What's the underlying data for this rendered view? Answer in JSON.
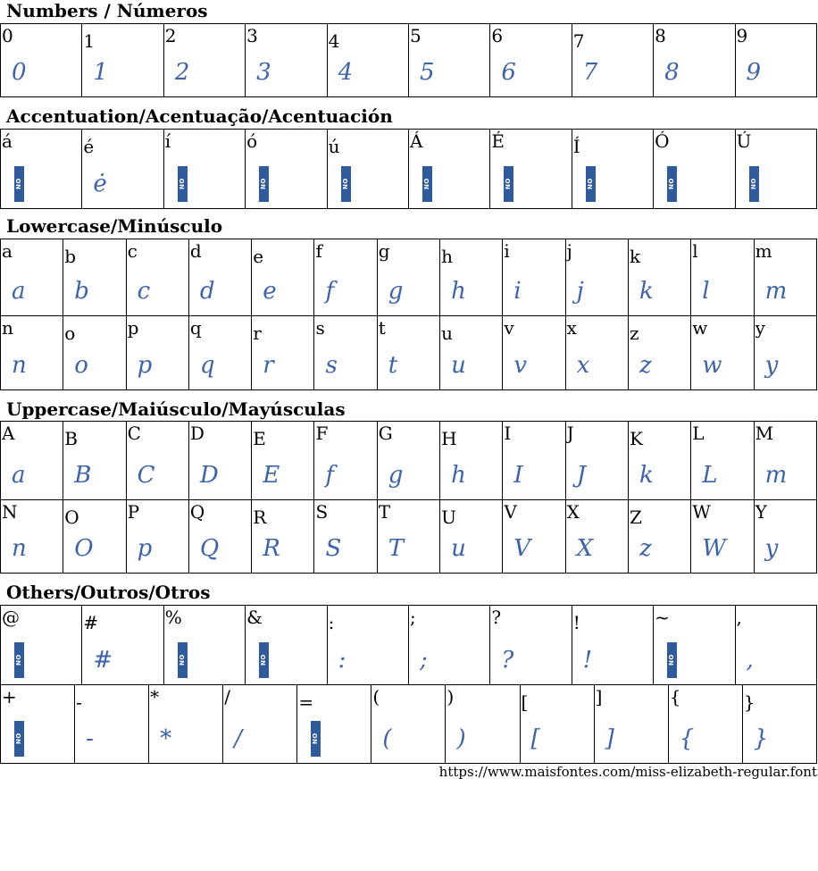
{
  "sections": [
    {
      "title": "Numbers / Números",
      "rows": [
        [
          {
            "char": "0",
            "glyph": "0"
          },
          {
            "char": "1",
            "glyph": "1"
          },
          {
            "char": "2",
            "glyph": "2"
          },
          {
            "char": "3",
            "glyph": "3"
          },
          {
            "char": "4",
            "glyph": "4"
          },
          {
            "char": "5",
            "glyph": "5"
          },
          {
            "char": "6",
            "glyph": "6"
          },
          {
            "char": "7",
            "glyph": "7"
          },
          {
            "char": "8",
            "glyph": "8"
          },
          {
            "char": "9",
            "glyph": "9"
          }
        ]
      ]
    },
    {
      "title": "Accentuation/Acentuação/Acentuación",
      "rows": [
        [
          {
            "char": "á",
            "glyph": null
          },
          {
            "char": "é",
            "glyph": "ė"
          },
          {
            "char": "í",
            "glyph": null
          },
          {
            "char": "ó",
            "glyph": null
          },
          {
            "char": "ú",
            "glyph": null
          },
          {
            "char": "Á",
            "glyph": null
          },
          {
            "char": "É",
            "glyph": null
          },
          {
            "char": "Í",
            "glyph": null
          },
          {
            "char": "Ó",
            "glyph": null
          },
          {
            "char": "Ú",
            "glyph": null
          }
        ]
      ]
    },
    {
      "title": "Lowercase/Minúsculo",
      "rows": [
        [
          {
            "char": "a",
            "glyph": "a"
          },
          {
            "char": "b",
            "glyph": "b"
          },
          {
            "char": "c",
            "glyph": "c"
          },
          {
            "char": "d",
            "glyph": "d"
          },
          {
            "char": "e",
            "glyph": "e"
          },
          {
            "char": "f",
            "glyph": "f"
          },
          {
            "char": "g",
            "glyph": "g"
          },
          {
            "char": "h",
            "glyph": "h"
          },
          {
            "char": "i",
            "glyph": "i"
          },
          {
            "char": "j",
            "glyph": "j"
          },
          {
            "char": "k",
            "glyph": "k"
          },
          {
            "char": "l",
            "glyph": "l"
          },
          {
            "char": "m",
            "glyph": "m"
          }
        ],
        [
          {
            "char": "n",
            "glyph": "n"
          },
          {
            "char": "o",
            "glyph": "o"
          },
          {
            "char": "p",
            "glyph": "p"
          },
          {
            "char": "q",
            "glyph": "q"
          },
          {
            "char": "r",
            "glyph": "r"
          },
          {
            "char": "s",
            "glyph": "s"
          },
          {
            "char": "t",
            "glyph": "t"
          },
          {
            "char": "u",
            "glyph": "u"
          },
          {
            "char": "v",
            "glyph": "v"
          },
          {
            "char": "x",
            "glyph": "x"
          },
          {
            "char": "z",
            "glyph": "z"
          },
          {
            "char": "w",
            "glyph": "w"
          },
          {
            "char": "y",
            "glyph": "y"
          }
        ]
      ]
    },
    {
      "title": "Uppercase/Maiúsculo/Mayúsculas",
      "rows": [
        [
          {
            "char": "A",
            "glyph": "a"
          },
          {
            "char": "B",
            "glyph": "B"
          },
          {
            "char": "C",
            "glyph": "C"
          },
          {
            "char": "D",
            "glyph": "D"
          },
          {
            "char": "E",
            "glyph": "E"
          },
          {
            "char": "F",
            "glyph": "f"
          },
          {
            "char": "G",
            "glyph": "g"
          },
          {
            "char": "H",
            "glyph": "h"
          },
          {
            "char": "I",
            "glyph": "I"
          },
          {
            "char": "J",
            "glyph": "J"
          },
          {
            "char": "K",
            "glyph": "k"
          },
          {
            "char": "L",
            "glyph": "L"
          },
          {
            "char": "M",
            "glyph": "m"
          }
        ],
        [
          {
            "char": "N",
            "glyph": "n"
          },
          {
            "char": "O",
            "glyph": "O"
          },
          {
            "char": "P",
            "glyph": "p"
          },
          {
            "char": "Q",
            "glyph": "Q"
          },
          {
            "char": "R",
            "glyph": "R"
          },
          {
            "char": "S",
            "glyph": "S"
          },
          {
            "char": "T",
            "glyph": "T"
          },
          {
            "char": "U",
            "glyph": "u"
          },
          {
            "char": "V",
            "glyph": "V"
          },
          {
            "char": "X",
            "glyph": "X"
          },
          {
            "char": "Z",
            "glyph": "z"
          },
          {
            "char": "W",
            "glyph": "W"
          },
          {
            "char": "Y",
            "glyph": "y"
          }
        ]
      ]
    },
    {
      "title": "Others/Outros/Otros",
      "rows": [
        [
          {
            "char": "@",
            "glyph": null
          },
          {
            "char": "#",
            "glyph": "#"
          },
          {
            "char": "%",
            "glyph": null
          },
          {
            "char": "&",
            "glyph": null
          },
          {
            "char": ":",
            "glyph": ":"
          },
          {
            "char": ";",
            "glyph": ";"
          },
          {
            "char": "?",
            "glyph": "?"
          },
          {
            "char": "!",
            "glyph": "!"
          },
          {
            "char": "~",
            "glyph": null
          },
          {
            "char": ",",
            "glyph": ","
          }
        ],
        [
          {
            "char": "+",
            "glyph": null
          },
          {
            "char": "-",
            "glyph": "-"
          },
          {
            "char": "*",
            "glyph": "*"
          },
          {
            "char": "/",
            "glyph": "/"
          },
          {
            "char": "=",
            "glyph": null
          },
          {
            "char": "(",
            "glyph": "("
          },
          {
            "char": ")",
            "glyph": ")"
          },
          {
            "char": "[",
            "glyph": "["
          },
          {
            "char": "]",
            "glyph": "]"
          },
          {
            "char": "{",
            "glyph": "{"
          },
          {
            "char": "}",
            "glyph": "}"
          }
        ]
      ]
    }
  ],
  "noglyph_label": "NO GLYPH",
  "glyph_color": "#3d63a8",
  "footer_url": "https://www.maisfontes.com/miss-elizabeth-regular.font"
}
